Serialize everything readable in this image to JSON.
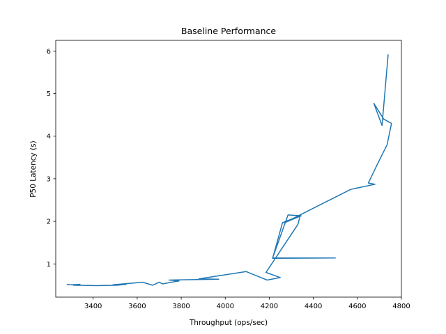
{
  "chart_data": {
    "type": "line",
    "title": "Baseline Performance",
    "xlabel": "Throughput (ops/sec)",
    "ylabel": "P50 Latency (s)",
    "xlim": [
      3230,
      4800
    ],
    "ylim": [
      0.22,
      6.25
    ],
    "x_ticks": [
      3400,
      3600,
      3800,
      4000,
      4200,
      4400,
      4600,
      4800
    ],
    "y_ticks": [
      1,
      2,
      3,
      4,
      5,
      6
    ],
    "grid": false,
    "legend": "none",
    "series": [
      {
        "color": "#1f77b4",
        "x": [
          3280,
          3300,
          3340,
          3310,
          3415,
          3510,
          3550,
          3490,
          3625,
          3670,
          3700,
          3715,
          3790,
          3745,
          3970,
          3880,
          4095,
          4190,
          4250,
          4185,
          4330,
          4340,
          4260,
          4215,
          4500,
          4215,
          4285,
          4345,
          4270,
          4570,
          4680,
          4650,
          4690,
          4735,
          4755,
          4720,
          4675,
          4712,
          4740
        ],
        "y": [
          0.52,
          0.51,
          0.52,
          0.5,
          0.49,
          0.5,
          0.52,
          0.51,
          0.57,
          0.5,
          0.57,
          0.53,
          0.6,
          0.62,
          0.64,
          0.65,
          0.82,
          0.62,
          0.68,
          0.8,
          1.93,
          2.13,
          1.97,
          1.13,
          1.14,
          1.14,
          2.15,
          2.13,
          1.97,
          2.75,
          2.87,
          2.9,
          3.33,
          3.8,
          4.3,
          4.4,
          4.77,
          4.25,
          5.92
        ]
      }
    ]
  }
}
